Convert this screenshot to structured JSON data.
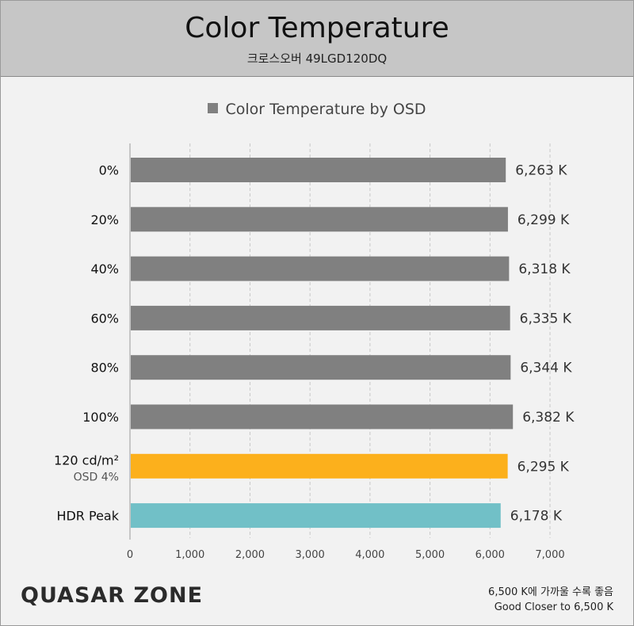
{
  "header": {
    "title": "Color Temperature",
    "subtitle": "크로스오버 49LGD120DQ"
  },
  "legend": {
    "label": "Color Temperature by OSD"
  },
  "chart_data": {
    "type": "bar",
    "orientation": "horizontal",
    "title": "Color Temperature",
    "subtitle": "크로스오버 49LGD120DQ",
    "xlim": [
      0,
      7000
    ],
    "x_ticks": [
      "0",
      "1,000",
      "2,000",
      "3,000",
      "4,000",
      "5,000",
      "6,000",
      "7,000"
    ],
    "x_tick_values": [
      0,
      1000,
      2000,
      3000,
      4000,
      5000,
      6000,
      7000
    ],
    "grid": true,
    "legend_position": "top-center",
    "series": [
      {
        "name": "Color Temperature by OSD",
        "color": "#808080"
      }
    ],
    "categories": [
      {
        "label": "0%",
        "sublabel": "",
        "value": 6263,
        "value_label": "6,263 K",
        "color": "#808080"
      },
      {
        "label": "20%",
        "sublabel": "",
        "value": 6299,
        "value_label": "6,299 K",
        "color": "#808080"
      },
      {
        "label": "40%",
        "sublabel": "",
        "value": 6318,
        "value_label": "6,318 K",
        "color": "#808080"
      },
      {
        "label": "60%",
        "sublabel": "",
        "value": 6335,
        "value_label": "6,335 K",
        "color": "#808080"
      },
      {
        "label": "80%",
        "sublabel": "",
        "value": 6344,
        "value_label": "6,344 K",
        "color": "#808080"
      },
      {
        "label": "100%",
        "sublabel": "",
        "value": 6382,
        "value_label": "6,382 K",
        "color": "#808080"
      },
      {
        "label": "120 cd/m²",
        "sublabel": "OSD 4%",
        "value": 6295,
        "value_label": "6,295 K",
        "color": "#fcb01c"
      },
      {
        "label": "HDR Peak",
        "sublabel": "",
        "value": 6178,
        "value_label": "6,178 K",
        "color": "#71c0c7"
      }
    ]
  },
  "footer": {
    "logo": "QUASAR ZONE",
    "note_line1": "6,500 K에 가까울 수록 좋음",
    "note_line2": "Good Closer to 6,500 K"
  }
}
